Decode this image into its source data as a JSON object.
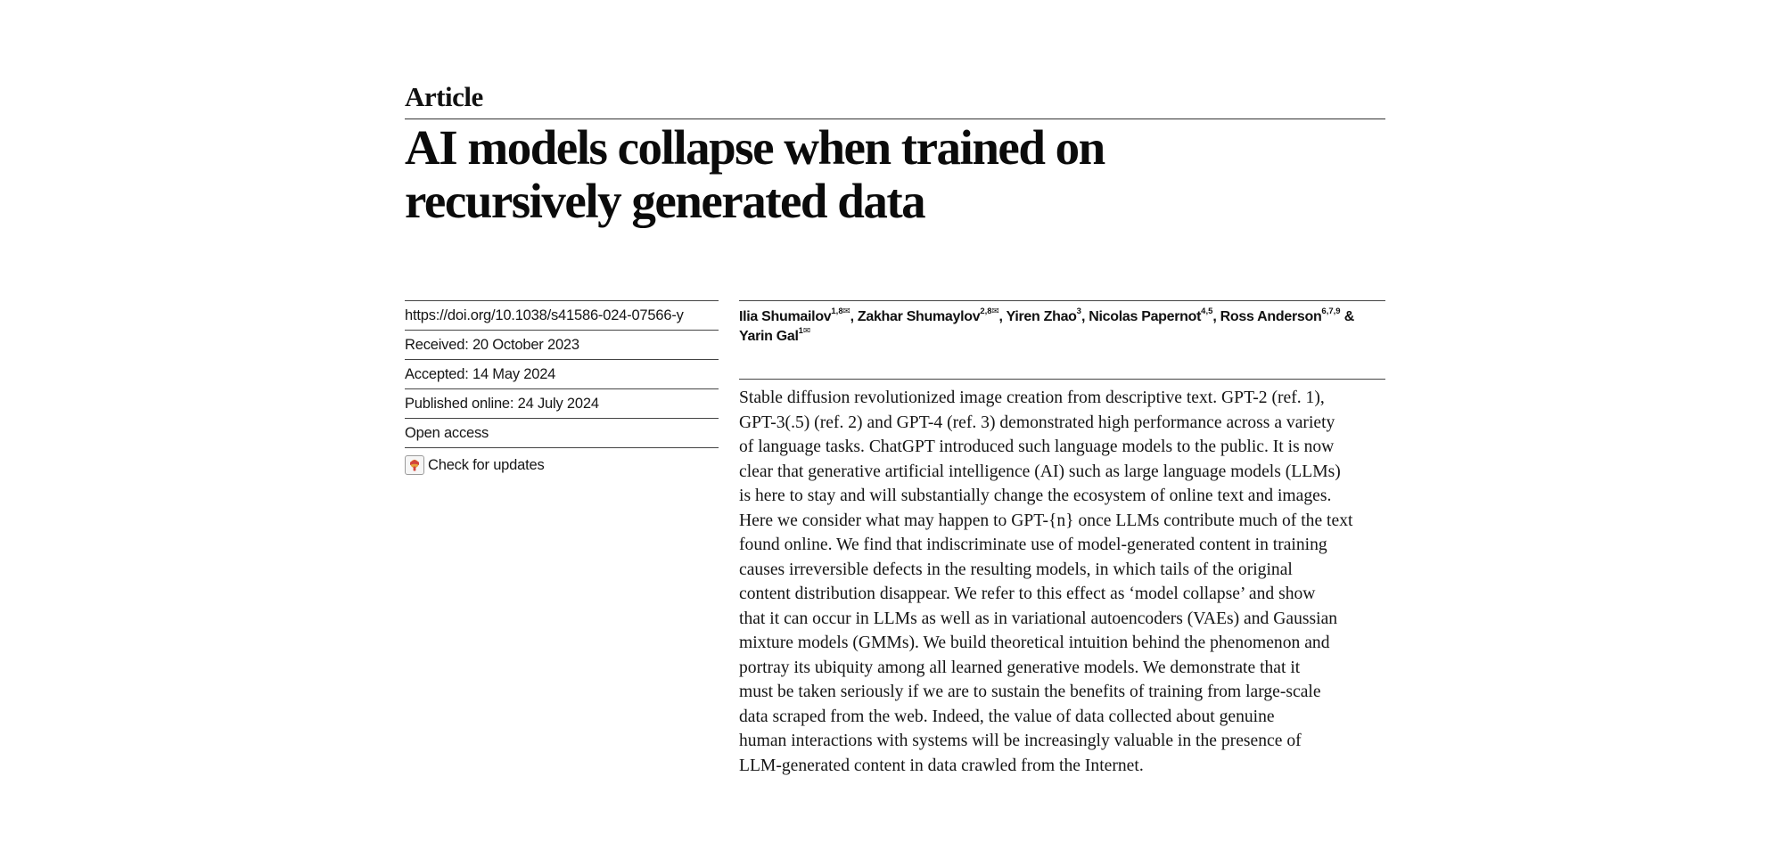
{
  "article_type": "Article",
  "title_lines": [
    "AI models collapse when trained on",
    "recursively generated data"
  ],
  "meta": {
    "doi": "https://doi.org/10.1038/s41586-024-07566-y",
    "received": "Received: 20 October 2023",
    "accepted": "Accepted: 14 May 2024",
    "published": "Published online: 24 July 2024",
    "access": "Open access",
    "check_updates": "Check for updates"
  },
  "authors": [
    {
      "name": "Ilia Shumailov",
      "affil": "1,8",
      "corresponding": true,
      "sep": ", "
    },
    {
      "name": "Zakhar Shumaylov",
      "affil": "2,8",
      "corresponding": true,
      "sep": ", "
    },
    {
      "name": "Yiren Zhao",
      "affil": "3",
      "corresponding": false,
      "sep": ", "
    },
    {
      "name": "Nicolas Papernot",
      "affil": "4,5",
      "corresponding": false,
      "sep": ", "
    },
    {
      "name": "Ross Anderson",
      "affil": "6,7,9",
      "corresponding": false,
      "sep": " "
    },
    {
      "name": "& Yarin Gal",
      "affil": "1",
      "corresponding": true,
      "sep": ""
    }
  ],
  "abstract_lines": [
    "Stable diffusion revolutionized image creation from descriptive text. GPT-2 (ref. 1),",
    "GPT-3(.5) (ref. 2) and GPT-4 (ref. 3) demonstrated high performance across a variety",
    "of language tasks. ChatGPT introduced such language models to the public. It is now",
    "clear that generative artificial intelligence (AI) such as large language models (LLMs)",
    "is here to stay and will substantially change the ecosystem of online text and images.",
    "Here we consider what may happen to GPT-{n} once LLMs contribute much of the text",
    "found online. We find that indiscriminate use of model-generated content in training",
    "causes irreversible defects in the resulting models, in which tails of the original",
    "content distribution disappear. We refer to this effect as ‘model collapse’ and show",
    "that it can occur in LLMs as well as in variational autoencoders (VAEs) and Gaussian",
    "mixture models (GMMs). We build theoretical intuition behind the phenomenon and",
    "portray its ubiquity among all learned generative models. We demonstrate that it",
    "must be taken seriously if we are to sustain the benefits of training from large-scale",
    "data scraped from the web. Indeed, the value of data collected about genuine",
    "human interactions with systems will be increasingly valuable in the presence of",
    "LLM-generated content in data crawled from the Internet."
  ]
}
